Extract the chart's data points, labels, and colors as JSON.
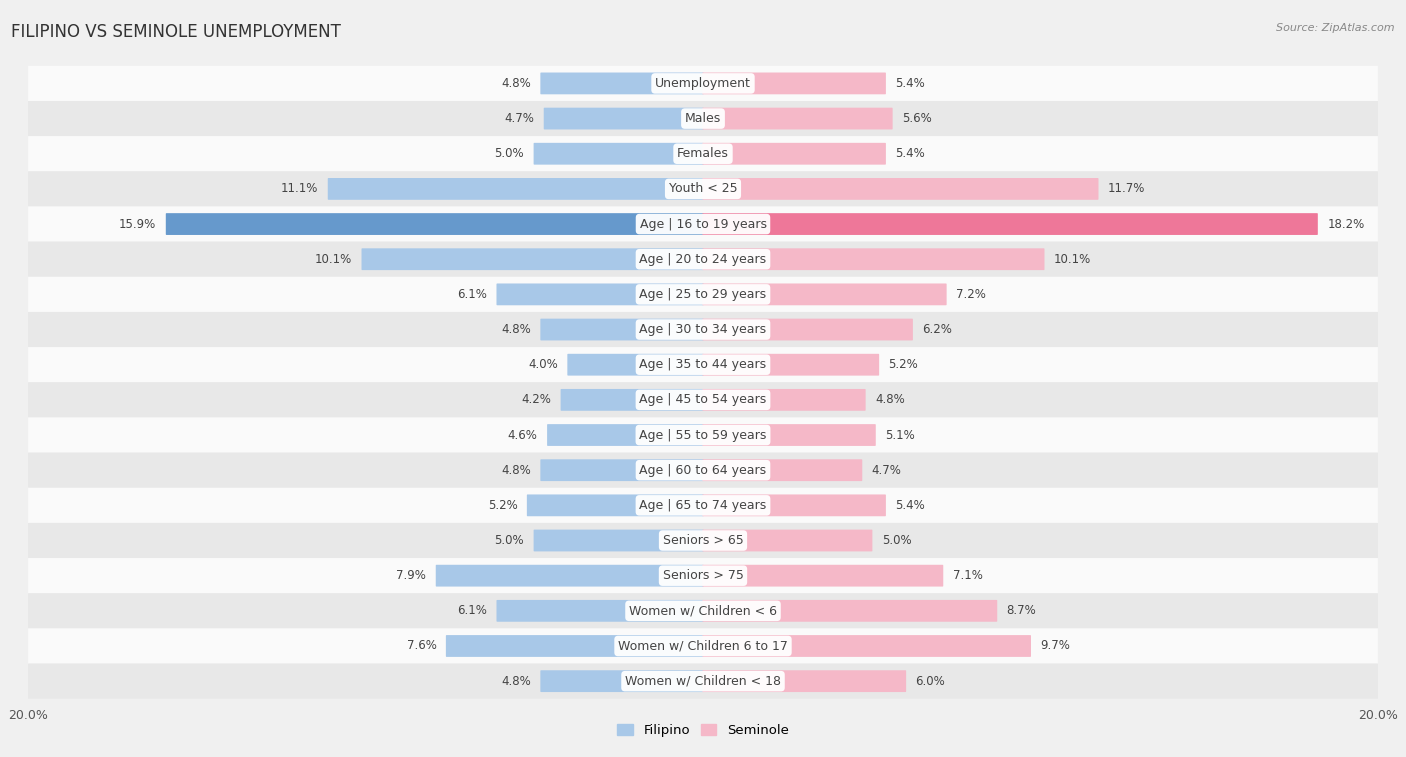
{
  "title": "FILIPINO VS SEMINOLE UNEMPLOYMENT",
  "source": "Source: ZipAtlas.com",
  "categories": [
    "Unemployment",
    "Males",
    "Females",
    "Youth < 25",
    "Age | 16 to 19 years",
    "Age | 20 to 24 years",
    "Age | 25 to 29 years",
    "Age | 30 to 34 years",
    "Age | 35 to 44 years",
    "Age | 45 to 54 years",
    "Age | 55 to 59 years",
    "Age | 60 to 64 years",
    "Age | 65 to 74 years",
    "Seniors > 65",
    "Seniors > 75",
    "Women w/ Children < 6",
    "Women w/ Children 6 to 17",
    "Women w/ Children < 18"
  ],
  "filipino": [
    4.8,
    4.7,
    5.0,
    11.1,
    15.9,
    10.1,
    6.1,
    4.8,
    4.0,
    4.2,
    4.6,
    4.8,
    5.2,
    5.0,
    7.9,
    6.1,
    7.6,
    4.8
  ],
  "seminole": [
    5.4,
    5.6,
    5.4,
    11.7,
    18.2,
    10.1,
    7.2,
    6.2,
    5.2,
    4.8,
    5.1,
    4.7,
    5.4,
    5.0,
    7.1,
    8.7,
    9.7,
    6.0
  ],
  "filipino_color": "#a8c8e8",
  "seminole_color": "#f5b8c8",
  "filipino_color_highlight": "#6699cc",
  "seminole_color_highlight": "#ee7799",
  "max_val": 20.0,
  "bar_height": 0.58,
  "bg_color": "#f0f0f0",
  "row_color_even": "#fafafa",
  "row_color_odd": "#e8e8e8",
  "label_fontsize": 9.0,
  "title_fontsize": 12,
  "value_fontsize": 8.5
}
